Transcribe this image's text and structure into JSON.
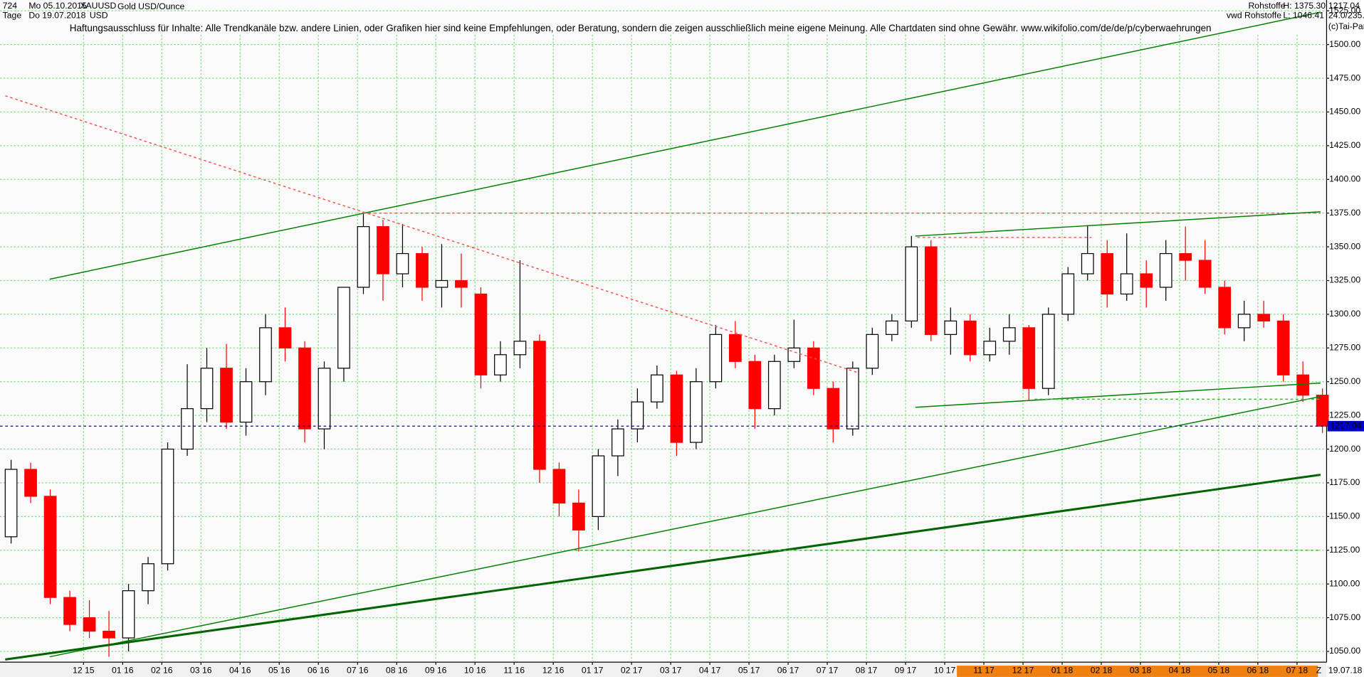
{
  "header": {
    "id": "724",
    "start": "Mo 05.10.2015",
    "symbol": "XAUUSD",
    "name": "Gold USD/Ounce",
    "period": "Tage",
    "end": "Do 19.07.2018",
    "currency": "USD",
    "group": "Rohstoffe",
    "high": "H: 1375.30",
    "source": "vwd Rohstoffe",
    "low": "L: 1046.41",
    "last": "1217.04",
    "ratio": "24.0/235.2",
    "copyright": "(c)Tai-Pan",
    "z": "Z",
    "end_short": "19.07.18"
  },
  "chart_data": {
    "type": "candlestick",
    "annotation": "Haftungsausschluss für Inhalte: Alle Trendkanäle bzw. andere Linien, oder Grafiken hier sind keine Empfehlungen, oder Beratung, sondern die zeigen ausschließlich meine eigene Meinung. Alle Chartdaten sind ohne Gewähr.  www.wikifolio.com/de/de/p/cyberwaehrungen",
    "categories": [
      null,
      null,
      null,
      null,
      null,
      null,
      null,
      null,
      null,
      null,
      null,
      null,
      null,
      null,
      null,
      null,
      null,
      null,
      null,
      null,
      null,
      null,
      null,
      null,
      null,
      null,
      null,
      null,
      null,
      null,
      null,
      null,
      null,
      null,
      null,
      null,
      null,
      null,
      null,
      null,
      null,
      null,
      null,
      null,
      null,
      null,
      null,
      null,
      null,
      null,
      null,
      null,
      null,
      null,
      null,
      null,
      null,
      null,
      null,
      null,
      null,
      null,
      null,
      null,
      null,
      null,
      null,
      null
    ],
    "open": [
      1135,
      1185,
      1165,
      1090,
      1075,
      1065,
      1060,
      1095,
      1115,
      1200,
      1230,
      1260,
      1220,
      1250,
      1290,
      1275,
      1215,
      1260,
      1320,
      1365,
      1330,
      1345,
      1320,
      1325,
      1315,
      1255,
      1270,
      1280,
      1185,
      1160,
      1150,
      1195,
      1215,
      1235,
      1255,
      1205,
      1250,
      1285,
      1265,
      1230,
      1265,
      1275,
      1245,
      1215,
      1260,
      1285,
      1295,
      1350,
      1285,
      1295,
      1270,
      1280,
      1290,
      1245,
      1300,
      1330,
      1345,
      1315,
      1330,
      1320,
      1345,
      1340,
      1320,
      1290,
      1300,
      1295,
      1255,
      1240
    ],
    "high": [
      1192,
      1190,
      1170,
      1095,
      1088,
      1080,
      1100,
      1120,
      1205,
      1263,
      1275,
      1278,
      1260,
      1300,
      1305,
      1280,
      1265,
      1320,
      1375,
      1370,
      1367,
      1350,
      1352,
      1345,
      1320,
      1280,
      1340,
      1285,
      1190,
      1170,
      1200,
      1222,
      1245,
      1262,
      1258,
      1260,
      1292,
      1295,
      1270,
      1270,
      1296,
      1280,
      1250,
      1265,
      1290,
      1300,
      1358,
      1355,
      1305,
      1300,
      1290,
      1300,
      1292,
      1305,
      1335,
      1366,
      1355,
      1360,
      1340,
      1355,
      1365,
      1355,
      1325,
      1310,
      1310,
      1300,
      1265,
      1245
    ],
    "low": [
      1130,
      1160,
      1085,
      1065,
      1060,
      1046,
      1050,
      1085,
      1110,
      1195,
      1220,
      1215,
      1210,
      1240,
      1265,
      1205,
      1200,
      1250,
      1315,
      1310,
      1320,
      1310,
      1305,
      1305,
      1245,
      1250,
      1260,
      1175,
      1150,
      1124,
      1140,
      1180,
      1205,
      1230,
      1195,
      1200,
      1245,
      1260,
      1215,
      1225,
      1260,
      1240,
      1205,
      1210,
      1255,
      1280,
      1290,
      1280,
      1270,
      1265,
      1265,
      1270,
      1236,
      1240,
      1295,
      1325,
      1305,
      1310,
      1305,
      1310,
      1325,
      1315,
      1285,
      1280,
      1290,
      1250,
      1235,
      1212
    ],
    "close": [
      1185,
      1165,
      1090,
      1070,
      1065,
      1060,
      1095,
      1115,
      1200,
      1230,
      1260,
      1220,
      1250,
      1290,
      1275,
      1215,
      1260,
      1320,
      1365,
      1330,
      1345,
      1320,
      1325,
      1320,
      1255,
      1270,
      1280,
      1185,
      1160,
      1140,
      1195,
      1215,
      1235,
      1255,
      1205,
      1250,
      1285,
      1265,
      1230,
      1265,
      1275,
      1245,
      1215,
      1260,
      1285,
      1295,
      1350,
      1285,
      1295,
      1270,
      1280,
      1290,
      1245,
      1300,
      1330,
      1345,
      1315,
      1330,
      1320,
      1345,
      1340,
      1320,
      1290,
      1300,
      1295,
      1255,
      1240,
      1217.04
    ],
    "up_color": "#000000",
    "down_color": "#ff0000",
    "xticks": [
      {
        "value": 4,
        "label": "12 15"
      },
      {
        "value": 6,
        "label": "01 16"
      },
      {
        "value": 8,
        "label": "02 16"
      },
      {
        "value": 10,
        "label": "03 16"
      },
      {
        "value": 12,
        "label": "04 16"
      },
      {
        "value": 14,
        "label": "05 16"
      },
      {
        "value": 16,
        "label": "06 16"
      },
      {
        "value": 18,
        "label": "07 16"
      },
      {
        "value": 20,
        "label": "08 16"
      },
      {
        "value": 22,
        "label": "09 16"
      },
      {
        "value": 24,
        "label": "10 16"
      },
      {
        "value": 26,
        "label": "11 16"
      },
      {
        "value": 28,
        "label": "12 16"
      },
      {
        "value": 30,
        "label": "01 17"
      },
      {
        "value": 32,
        "label": "02 17"
      },
      {
        "value": 34,
        "label": "03 17"
      },
      {
        "value": 36,
        "label": "04 17"
      },
      {
        "value": 38,
        "label": "05 17"
      },
      {
        "value": 40,
        "label": "06 17"
      },
      {
        "value": 42,
        "label": "07 17"
      },
      {
        "value": 44,
        "label": "08 17"
      },
      {
        "value": 46,
        "label": "09 17"
      },
      {
        "value": 48,
        "label": "10 17"
      },
      {
        "value": 50,
        "label": "11 17"
      },
      {
        "value": 52,
        "label": "12 17"
      },
      {
        "value": 54,
        "label": "01 18"
      },
      {
        "value": 56,
        "label": "02 18"
      },
      {
        "value": 58,
        "label": "03 18"
      },
      {
        "value": 60,
        "label": "04 18"
      },
      {
        "value": 62,
        "label": "05 18"
      },
      {
        "value": 64,
        "label": "06 18"
      },
      {
        "value": 66,
        "label": "07 18"
      }
    ],
    "ylim": [
      1042,
      1533
    ],
    "yticks": [
      {
        "value": 1050,
        "label": "1050.00"
      },
      {
        "value": 1075,
        "label": "1075.00"
      },
      {
        "value": 1100,
        "label": "1100.00"
      },
      {
        "value": 1125,
        "label": "1125.00"
      },
      {
        "value": 1150,
        "label": "1150.00"
      },
      {
        "value": 1175,
        "label": "1175.00"
      },
      {
        "value": 1200,
        "label": "1200.00"
      },
      {
        "value": 1225,
        "label": "1225.00"
      },
      {
        "value": 1250,
        "label": "1250.00"
      },
      {
        "value": 1275,
        "label": "1275.00"
      },
      {
        "value": 1300,
        "label": "1300.00"
      },
      {
        "value": 1325,
        "label": "1325.00"
      },
      {
        "value": 1350,
        "label": "1350.00"
      },
      {
        "value": 1375,
        "label": "1375.00"
      },
      {
        "value": 1400,
        "label": "1400.00"
      },
      {
        "value": 1425,
        "label": "1425.00"
      },
      {
        "value": 1450,
        "label": "1450.00"
      },
      {
        "value": 1475,
        "label": "1475.00"
      },
      {
        "value": 1500,
        "label": "1500.00"
      },
      {
        "value": 1525,
        "label": "1525.00"
      }
    ],
    "grid": true,
    "grid_color": "#7ee07e",
    "price_line": {
      "value": 1217.04,
      "label": "1217.04",
      "color": "#0000c8"
    },
    "trendlines": [
      {
        "x": [
          2.27,
          67.2
        ],
        "y": [
          1326,
          1524
        ],
        "color": "#008000"
      },
      {
        "x": [
          0,
          43.5
        ],
        "y": [
          1462,
          1257
        ],
        "color": "#ff5050",
        "dash": true
      },
      {
        "x": [
          18.3,
          67.2
        ],
        "y": [
          1375,
          1375
        ],
        "color": "#ff5050",
        "dash": true
      },
      {
        "x": [
          46.5,
          67.2
        ],
        "y": [
          1358,
          1376
        ],
        "color": "#008000"
      },
      {
        "x": [
          46.5,
          67.2
        ],
        "y": [
          1231,
          1249
        ],
        "color": "#008000"
      },
      {
        "x": [
          2.27,
          67.2
        ],
        "y": [
          1046,
          1239
        ],
        "color": "#008000"
      },
      {
        "x": [
          0,
          67.2
        ],
        "y": [
          1044,
          1181
        ],
        "color": "#006400",
        "width": 2.5
      },
      {
        "x": [
          29.1,
          67.2
        ],
        "y": [
          1125,
          1125
        ],
        "color": "#30c030",
        "dash": true
      },
      {
        "x": [
          52.6,
          67.2
        ],
        "y": [
          1237,
          1237
        ],
        "color": "#30c030",
        "dash": true
      },
      {
        "x": [
          46.6,
          55.5
        ],
        "y": [
          1357,
          1357
        ],
        "color": "#ff5050",
        "dash": true
      }
    ]
  }
}
